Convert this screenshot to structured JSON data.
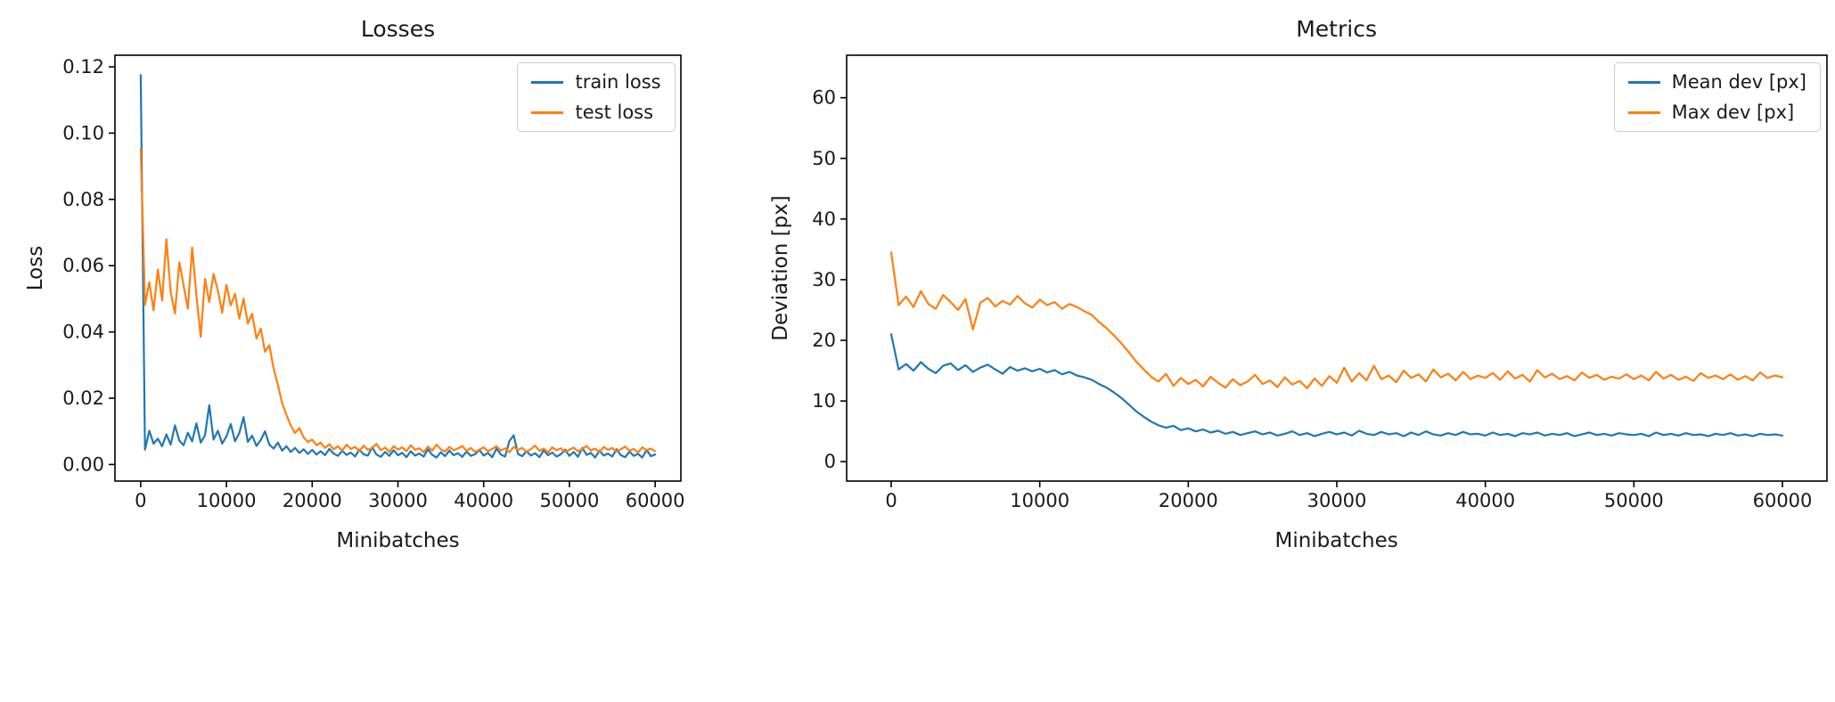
{
  "figure": {
    "background": "#ffffff",
    "text_color": "#1a1a1a",
    "spine_color": "#000000"
  },
  "chart_data": [
    {
      "type": "line",
      "title": "Losses",
      "xlabel": "Minibatches",
      "ylabel": "Loss",
      "xlim": [
        -3000,
        63000
      ],
      "ylim": [
        -0.005,
        0.1235
      ],
      "x_ticks": [
        0,
        10000,
        20000,
        30000,
        40000,
        50000,
        60000
      ],
      "y_ticks": [
        0,
        0.02,
        0.04,
        0.06,
        0.08,
        0.1,
        0.12
      ],
      "y_tick_decimals": 2,
      "grid": false,
      "legend_position": "upper right",
      "x_start": 0,
      "x_step": 500,
      "series": [
        {
          "name": "train loss",
          "color": "#1f77b4",
          "values": [
            0.1175,
            0.0045,
            0.0102,
            0.0063,
            0.0078,
            0.0055,
            0.0091,
            0.006,
            0.0118,
            0.0072,
            0.0058,
            0.0096,
            0.007,
            0.0124,
            0.0066,
            0.0088,
            0.0179,
            0.0075,
            0.0102,
            0.0063,
            0.0085,
            0.0122,
            0.007,
            0.0095,
            0.0143,
            0.0068,
            0.0087,
            0.0056,
            0.0074,
            0.01,
            0.006,
            0.0048,
            0.0066,
            0.0042,
            0.0055,
            0.0038,
            0.005,
            0.0035,
            0.0046,
            0.0032,
            0.0044,
            0.003,
            0.004,
            0.0028,
            0.0047,
            0.0033,
            0.0026,
            0.0041,
            0.0029,
            0.0036,
            0.0024,
            0.0045,
            0.0031,
            0.0027,
            0.0052,
            0.003,
            0.0023,
            0.0038,
            0.0026,
            0.0043,
            0.0028,
            0.0035,
            0.0022,
            0.004,
            0.0027,
            0.0033,
            0.0024,
            0.0046,
            0.0029,
            0.0021,
            0.0037,
            0.0025,
            0.0042,
            0.0028,
            0.0034,
            0.0023,
            0.0039,
            0.0026,
            0.0031,
            0.0044,
            0.0027,
            0.0035,
            0.0022,
            0.0048,
            0.003,
            0.0024,
            0.0071,
            0.0088,
            0.0032,
            0.0025,
            0.004,
            0.0027,
            0.0034,
            0.0022,
            0.0043,
            0.0028,
            0.0036,
            0.0024,
            0.0031,
            0.0045,
            0.0026,
            0.0038,
            0.0023,
            0.005,
            0.0029,
            0.0035,
            0.0021,
            0.0042,
            0.0027,
            0.0033,
            0.0024,
            0.0046,
            0.0028,
            0.0022,
            0.0039,
            0.0026,
            0.0032,
            0.0021,
            0.0044,
            0.0025,
            0.003
          ]
        },
        {
          "name": "test loss",
          "color": "#ff7f0e",
          "values": [
            0.0953,
            0.0482,
            0.055,
            0.0465,
            0.0588,
            0.0495,
            0.068,
            0.052,
            0.0456,
            0.061,
            0.054,
            0.047,
            0.0655,
            0.051,
            0.0385,
            0.056,
            0.049,
            0.0575,
            0.0525,
            0.0458,
            0.0542,
            0.048,
            0.0515,
            0.044,
            0.05,
            0.0425,
            0.0455,
            0.038,
            0.041,
            0.034,
            0.036,
            0.029,
            0.024,
            0.0185,
            0.015,
            0.0118,
            0.0095,
            0.011,
            0.0082,
            0.0068,
            0.0075,
            0.0058,
            0.0066,
            0.005,
            0.0061,
            0.0046,
            0.0055,
            0.0042,
            0.006,
            0.0047,
            0.0053,
            0.004,
            0.0057,
            0.0044,
            0.005,
            0.0062,
            0.0043,
            0.0051,
            0.0038,
            0.0055,
            0.0045,
            0.0052,
            0.004,
            0.0058,
            0.0044,
            0.0049,
            0.0037,
            0.0054,
            0.0042,
            0.006,
            0.0046,
            0.0039,
            0.0053,
            0.0043,
            0.0048,
            0.0056,
            0.0041,
            0.005,
            0.0038,
            0.0045,
            0.0052,
            0.004,
            0.0047,
            0.0055,
            0.0042,
            0.0049,
            0.0037,
            0.0053,
            0.0044,
            0.005,
            0.0039,
            0.0046,
            0.0057,
            0.0041,
            0.0048,
            0.0036,
            0.0052,
            0.0043,
            0.0049,
            0.0038,
            0.0045,
            0.0051,
            0.004,
            0.0047,
            0.0056,
            0.0042,
            0.0048,
            0.0037,
            0.0053,
            0.0044,
            0.005,
            0.0039,
            0.0046,
            0.0054,
            0.0041,
            0.0047,
            0.0036,
            0.0052,
            0.0043,
            0.0048,
            0.004
          ]
        }
      ]
    },
    {
      "type": "line",
      "title": "Metrics",
      "xlabel": "Minibatches",
      "ylabel": "Deviation [px]",
      "xlim": [
        -3000,
        63000
      ],
      "ylim": [
        -3.2,
        67
      ],
      "x_ticks": [
        0,
        10000,
        20000,
        30000,
        40000,
        50000,
        60000
      ],
      "y_ticks": [
        0,
        10,
        20,
        30,
        40,
        50,
        60
      ],
      "y_tick_decimals": 0,
      "grid": false,
      "legend_position": "upper right",
      "x_start": 0,
      "x_step": 500,
      "series": [
        {
          "name": "Mean dev [px]",
          "color": "#1f77b4",
          "values": [
            21.0,
            15.2,
            16.1,
            15.0,
            16.4,
            15.3,
            14.6,
            15.8,
            16.2,
            15.1,
            15.9,
            14.8,
            15.5,
            16.0,
            15.2,
            14.5,
            15.6,
            15.0,
            15.4,
            14.9,
            15.3,
            14.7,
            15.1,
            14.4,
            14.8,
            14.2,
            13.9,
            13.5,
            12.8,
            12.2,
            11.4,
            10.5,
            9.4,
            8.3,
            7.4,
            6.6,
            6.0,
            5.6,
            5.9,
            5.2,
            5.5,
            5.0,
            5.3,
            4.8,
            5.1,
            4.6,
            4.9,
            4.4,
            4.7,
            5.0,
            4.5,
            4.8,
            4.3,
            4.6,
            5.0,
            4.4,
            4.7,
            4.2,
            4.6,
            4.9,
            4.5,
            4.8,
            4.3,
            5.1,
            4.6,
            4.4,
            4.9,
            4.5,
            4.7,
            4.2,
            4.8,
            4.4,
            5.0,
            4.5,
            4.3,
            4.7,
            4.4,
            4.9,
            4.5,
            4.6,
            4.3,
            4.8,
            4.4,
            4.6,
            4.2,
            4.7,
            4.5,
            4.8,
            4.3,
            4.6,
            4.4,
            4.7,
            4.2,
            4.5,
            4.8,
            4.4,
            4.6,
            4.3,
            4.7,
            4.5,
            4.4,
            4.6,
            4.2,
            4.8,
            4.4,
            4.6,
            4.3,
            4.7,
            4.4,
            4.5,
            4.2,
            4.6,
            4.4,
            4.7,
            4.3,
            4.5,
            4.2,
            4.6,
            4.4,
            4.5,
            4.3
          ]
        },
        {
          "name": "Max dev [px]",
          "color": "#ff7f0e",
          "values": [
            34.5,
            25.8,
            27.2,
            25.5,
            28.1,
            26.0,
            25.2,
            27.5,
            26.3,
            25.0,
            26.8,
            21.8,
            26.2,
            27.0,
            25.6,
            26.5,
            25.9,
            27.3,
            26.1,
            25.4,
            26.7,
            25.8,
            26.3,
            25.2,
            26.0,
            25.5,
            24.8,
            24.2,
            23.0,
            22.0,
            20.8,
            19.5,
            18.0,
            16.5,
            15.2,
            14.0,
            13.2,
            14.5,
            12.5,
            13.8,
            12.8,
            13.5,
            12.4,
            14.0,
            13.0,
            12.2,
            13.6,
            12.6,
            13.2,
            14.3,
            12.8,
            13.4,
            12.3,
            13.9,
            12.7,
            13.3,
            12.1,
            13.7,
            12.5,
            14.1,
            13.0,
            15.5,
            13.2,
            14.6,
            13.4,
            15.8,
            13.6,
            14.2,
            13.1,
            15.0,
            13.8,
            14.4,
            13.2,
            15.2,
            13.9,
            14.5,
            13.4,
            14.8,
            13.6,
            14.2,
            13.8,
            14.6,
            13.5,
            14.9,
            13.7,
            14.3,
            13.2,
            15.1,
            13.9,
            14.5,
            13.6,
            14.1,
            13.4,
            14.7,
            13.8,
            14.3,
            13.5,
            14.0,
            13.7,
            14.4,
            13.6,
            14.2,
            13.4,
            14.8,
            13.7,
            14.3,
            13.5,
            14.0,
            13.3,
            14.6,
            13.8,
            14.2,
            13.6,
            14.4,
            13.5,
            14.1,
            13.4,
            14.7,
            13.8,
            14.2,
            13.9
          ]
        }
      ]
    }
  ]
}
